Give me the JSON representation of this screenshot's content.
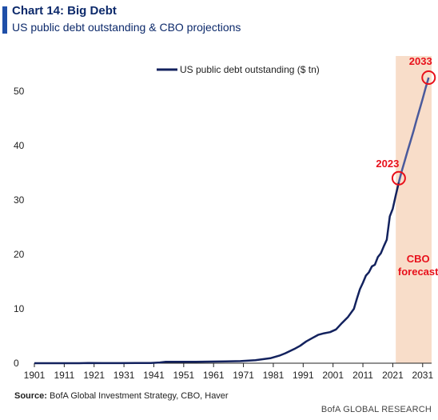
{
  "header": {
    "title": "Chart 14: Big Debt",
    "subtitle": "US public debt outstanding & CBO projections"
  },
  "footer": {
    "source_label": "Source:",
    "source_text": "BofA Global Investment Strategy, CBO, Haver",
    "brand": "BofA GLOBAL RESEARCH"
  },
  "colors": {
    "series": "#13225e",
    "forecast_series": "#4a5a9c",
    "forecast_band": "#f8ddc9",
    "annotation": "#e8101b",
    "accent": "#1f4fa8"
  },
  "chart_data": {
    "type": "line",
    "title": "Chart 14: Big Debt",
    "subtitle": "US public debt outstanding & CBO projections",
    "xlabel": "",
    "ylabel": "",
    "xlim": [
      1901,
      2034
    ],
    "ylim": [
      0,
      55
    ],
    "xticks": [
      1901,
      1911,
      1921,
      1931,
      1941,
      1951,
      1961,
      1971,
      1981,
      1991,
      2001,
      2011,
      2021,
      2031
    ],
    "yticks": [
      0,
      10,
      20,
      30,
      40,
      50
    ],
    "grid": false,
    "legend": {
      "position": "top",
      "entries": [
        "US public debt outstanding ($ tn)"
      ]
    },
    "series": [
      {
        "name": "US public debt outstanding ($ tn)",
        "x": [
          1901,
          1910,
          1916,
          1919,
          1925,
          1930,
          1935,
          1940,
          1943,
          1945,
          1950,
          1955,
          1960,
          1965,
          1970,
          1975,
          1980,
          1983,
          1985,
          1988,
          1990,
          1992,
          1994,
          1996,
          1998,
          2000,
          2002,
          2004,
          2006,
          2008,
          2009,
          2010,
          2011,
          2012,
          2013,
          2014,
          2015,
          2016,
          2017,
          2018,
          2019,
          2020,
          2021,
          2022,
          2023
        ],
        "values": [
          0.0,
          0.0,
          0.0,
          0.03,
          0.02,
          0.02,
          0.03,
          0.05,
          0.13,
          0.26,
          0.26,
          0.27,
          0.29,
          0.32,
          0.38,
          0.54,
          0.91,
          1.38,
          1.82,
          2.6,
          3.2,
          4.0,
          4.6,
          5.2,
          5.5,
          5.7,
          6.2,
          7.4,
          8.5,
          10.0,
          11.9,
          13.6,
          14.8,
          16.1,
          16.7,
          17.8,
          18.1,
          19.5,
          20.2,
          21.5,
          22.7,
          27.0,
          28.4,
          30.9,
          33.2
        ]
      },
      {
        "name": "CBO forecast",
        "x": [
          2023,
          2024,
          2025,
          2026,
          2027,
          2028,
          2029,
          2030,
          2031,
          2032,
          2033
        ],
        "values": [
          33.2,
          35.3,
          37.2,
          39.1,
          40.9,
          42.8,
          44.8,
          46.7,
          48.6,
          50.6,
          52.5
        ]
      }
    ],
    "annotations": [
      {
        "label": "2023",
        "x": 2023,
        "y": 34.0
      },
      {
        "label": "2033",
        "x": 2033,
        "y": 52.5
      },
      {
        "label": "CBO forecast",
        "x": 2029.5,
        "y": 18.5
      }
    ],
    "forecast_region": {
      "x_from": 2022,
      "x_to": 2034,
      "label": "CBO forecast"
    }
  }
}
